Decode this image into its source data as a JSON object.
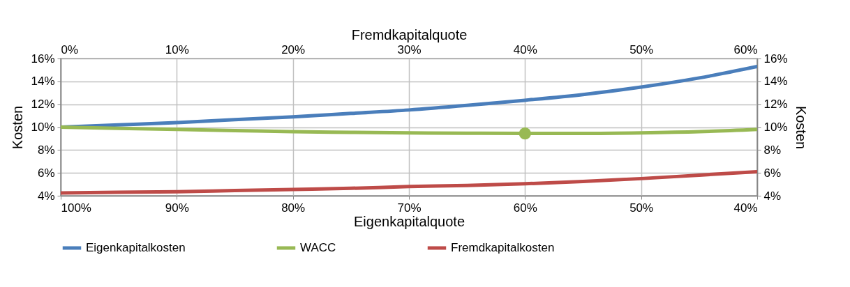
{
  "chart_data": {
    "type": "line",
    "xlabel": "Eigenkapitalquote",
    "x2label": "Fremdkapitalquote",
    "ylabel": "Kosten",
    "y2label": "Kosten",
    "xlim": [
      100,
      40
    ],
    "xticks": [
      {
        "value": 100,
        "label": "100%"
      },
      {
        "value": 90,
        "label": "90%"
      },
      {
        "value": 80,
        "label": "80%"
      },
      {
        "value": 70,
        "label": "70%"
      },
      {
        "value": 60,
        "label": "60%"
      },
      {
        "value": 50,
        "label": "50%"
      },
      {
        "value": 40,
        "label": "40%"
      }
    ],
    "x2lim": [
      0,
      60
    ],
    "x2ticks": [
      {
        "value": 0,
        "label": "0%"
      },
      {
        "value": 10,
        "label": "10%"
      },
      {
        "value": 20,
        "label": "20%"
      },
      {
        "value": 30,
        "label": "30%"
      },
      {
        "value": 40,
        "label": "40%"
      },
      {
        "value": 50,
        "label": "50%"
      },
      {
        "value": 60,
        "label": "60%"
      }
    ],
    "ylim": [
      4,
      16
    ],
    "yticks": [
      {
        "value": 4,
        "label": "4%"
      },
      {
        "value": 6,
        "label": "6%"
      },
      {
        "value": 8,
        "label": "8%"
      },
      {
        "value": 10,
        "label": "10%"
      },
      {
        "value": 12,
        "label": "12%"
      },
      {
        "value": 14,
        "label": "14%"
      },
      {
        "value": 16,
        "label": "16%"
      }
    ],
    "y2lim": [
      4,
      16
    ],
    "y2ticks": [
      {
        "value": 4,
        "label": "4%"
      },
      {
        "value": 6,
        "label": "6%"
      },
      {
        "value": 8,
        "label": "8%"
      },
      {
        "value": 10,
        "label": "10%"
      },
      {
        "value": 12,
        "label": "12%"
      },
      {
        "value": 14,
        "label": "14%"
      },
      {
        "value": 16,
        "label": "16%"
      }
    ],
    "x": [
      100,
      95,
      90,
      85,
      80,
      75,
      70,
      65,
      60,
      55,
      50,
      45,
      40
    ],
    "grid": true,
    "legend": "bottom",
    "marker": "none",
    "line_style": "solid",
    "series": [
      {
        "name": "Eigenkapitalkosten",
        "color": "#4a7ebb",
        "values": [
          10,
          10.2,
          10.4,
          10.65,
          10.9,
          11.2,
          11.5,
          11.9,
          12.35,
          12.85,
          13.5,
          14.3,
          15.3
        ]
      },
      {
        "name": "WACC",
        "color": "#98b954",
        "values": [
          10,
          9.9,
          9.8,
          9.7,
          9.6,
          9.55,
          9.5,
          9.47,
          9.45,
          9.45,
          9.5,
          9.6,
          9.8
        ]
      },
      {
        "name": "Fremdkapitalkosten",
        "color": "#be4b48",
        "values": [
          4.25,
          4.3,
          4.35,
          4.45,
          4.55,
          4.65,
          4.8,
          4.9,
          5.05,
          5.25,
          5.5,
          5.8,
          6.1
        ]
      },
      {
        "type": "scatter",
        "marker": "circle",
        "color": "#98b954",
        "x": [
          60
        ],
        "values": [
          9.45
        ]
      }
    ]
  }
}
